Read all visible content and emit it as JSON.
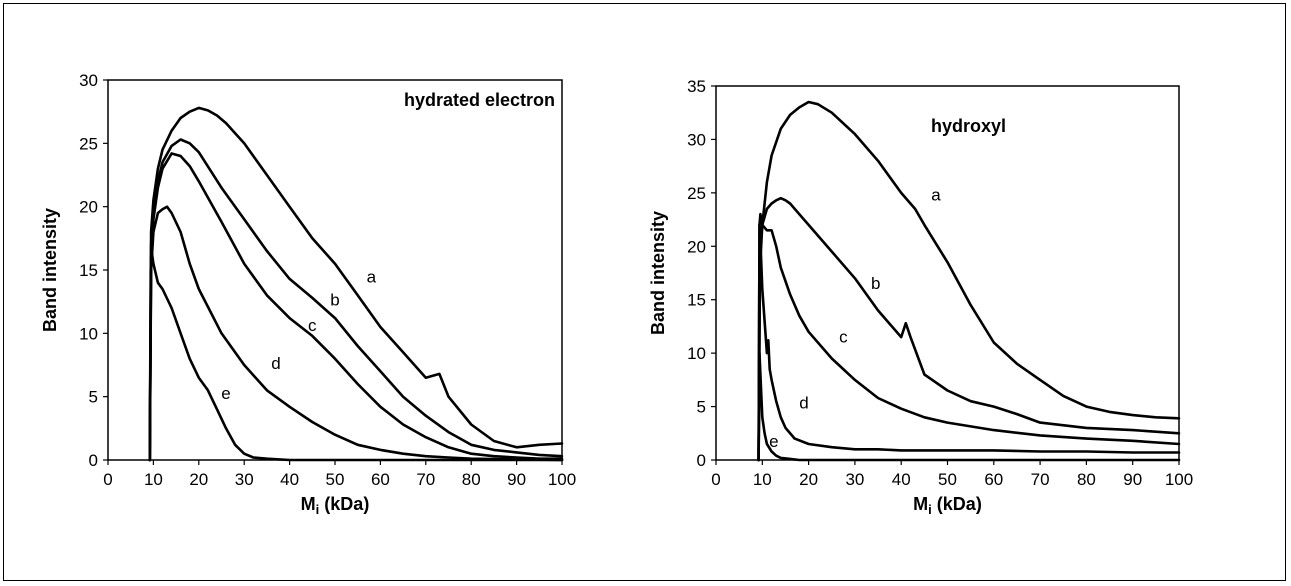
{
  "chart_data": [
    {
      "type": "line",
      "title": "",
      "annotation": "hydrated electron",
      "xlabel_main": "M",
      "xlabel_sub": "i",
      "xlabel_rest": " (kDa)",
      "ylabel": "Band intensity",
      "xlim": [
        0,
        100
      ],
      "ylim": [
        0,
        30
      ],
      "xticks": [
        0,
        10,
        20,
        30,
        40,
        50,
        60,
        70,
        80,
        90,
        100
      ],
      "yticks": [
        0,
        5,
        10,
        15,
        20,
        25,
        30
      ],
      "grid": false,
      "series": [
        {
          "name": "a",
          "label_at": [
            58,
            14
          ],
          "x": [
            9.2,
            9.5,
            10,
            11,
            12,
            14,
            16,
            18,
            20,
            22,
            24,
            26,
            28,
            30,
            35,
            40,
            45,
            50,
            55,
            60,
            65,
            70,
            73,
            75,
            80,
            85,
            90,
            95,
            100
          ],
          "y": [
            0,
            18,
            20.5,
            23,
            24.5,
            26,
            27,
            27.5,
            27.8,
            27.6,
            27.2,
            26.6,
            25.8,
            25,
            22.5,
            20,
            17.5,
            15.5,
            13,
            10.5,
            8.5,
            6.5,
            6.8,
            5,
            2.8,
            1.5,
            1,
            1.2,
            1.3
          ]
        },
        {
          "name": "b",
          "label_at": [
            50,
            12.2
          ],
          "x": [
            9.2,
            9.5,
            10,
            11,
            12,
            14,
            16,
            18,
            20,
            25,
            30,
            35,
            40,
            45,
            50,
            55,
            60,
            65,
            70,
            75,
            80,
            85,
            90,
            95,
            100
          ],
          "y": [
            0,
            17,
            19.5,
            22,
            23.5,
            24.8,
            25.3,
            25,
            24.3,
            21.5,
            19,
            16.5,
            14.3,
            12.8,
            11.2,
            9,
            7,
            5,
            3.5,
            2.2,
            1.2,
            0.8,
            0.6,
            0.4,
            0.3
          ]
        },
        {
          "name": "c",
          "label_at": [
            45,
            10.2
          ],
          "x": [
            9.2,
            9.5,
            10,
            11,
            12,
            14,
            16,
            18,
            20,
            25,
            30,
            35,
            40,
            45,
            50,
            55,
            60,
            65,
            70,
            75,
            80,
            85,
            90,
            95,
            100
          ],
          "y": [
            0,
            16,
            19,
            21.5,
            23,
            24.2,
            24,
            23.2,
            22,
            18.8,
            15.5,
            13,
            11.2,
            9.8,
            8,
            6,
            4.2,
            2.8,
            1.8,
            1,
            0.5,
            0.3,
            0.2,
            0.1,
            0.1
          ]
        },
        {
          "name": "d",
          "label_at": [
            37,
            7.2
          ],
          "x": [
            9.2,
            9.5,
            10,
            11,
            12,
            13,
            14,
            16,
            18,
            20,
            25,
            30,
            35,
            40,
            45,
            50,
            55,
            60,
            65,
            70,
            75,
            80,
            90,
            100
          ],
          "y": [
            0,
            15,
            18,
            19.5,
            19.8,
            20,
            19.5,
            18,
            15.5,
            13.5,
            10,
            7.5,
            5.5,
            4.2,
            3,
            2,
            1.2,
            0.8,
            0.5,
            0.3,
            0.2,
            0.1,
            0.05,
            0
          ]
        },
        {
          "name": "e",
          "label_at": [
            26,
            4.8
          ],
          "x": [
            9.2,
            9.4,
            9.6,
            10,
            11,
            12,
            14,
            16,
            18,
            20,
            22,
            24,
            26,
            28,
            30,
            32,
            35,
            40,
            50,
            60,
            70,
            80,
            90,
            100
          ],
          "y": [
            0,
            15,
            16.5,
            15.5,
            14,
            13.5,
            12,
            10,
            8,
            6.5,
            5.5,
            4,
            2.5,
            1.2,
            0.5,
            0.2,
            0.1,
            0,
            0,
            0,
            0,
            0,
            0,
            0
          ]
        }
      ]
    },
    {
      "type": "line",
      "title": "",
      "annotation": "hydroxyl",
      "xlabel_main": "M",
      "xlabel_sub": "i",
      "xlabel_rest": " (kDa)",
      "ylabel": "Band intensity",
      "xlim": [
        0,
        100
      ],
      "ylim": [
        0,
        35
      ],
      "xticks": [
        0,
        10,
        20,
        30,
        40,
        50,
        60,
        70,
        80,
        90,
        100
      ],
      "yticks": [
        0,
        5,
        10,
        15,
        20,
        25,
        30,
        35
      ],
      "grid": false,
      "series": [
        {
          "name": "a",
          "label_at": [
            47.5,
            24.3
          ],
          "x": [
            9.2,
            9.5,
            10,
            11,
            12,
            14,
            16,
            18,
            20,
            22,
            25,
            30,
            35,
            40,
            43,
            45,
            50,
            55,
            60,
            65,
            70,
            75,
            80,
            85,
            90,
            95,
            100
          ],
          "y": [
            0,
            18,
            22,
            26,
            28.5,
            31,
            32.3,
            33,
            33.5,
            33.3,
            32.5,
            30.5,
            28,
            25,
            23.5,
            22,
            18.5,
            14.5,
            11,
            9,
            7.5,
            6,
            5,
            4.5,
            4.2,
            4,
            3.9
          ]
        },
        {
          "name": "b",
          "label_at": [
            34.5,
            16
          ],
          "x": [
            9.2,
            9.5,
            10,
            11,
            12,
            13,
            14,
            15,
            16,
            18,
            20,
            25,
            30,
            35,
            40,
            41,
            42,
            45,
            50,
            55,
            60,
            65,
            70,
            80,
            90,
            100
          ],
          "y": [
            0,
            20,
            22,
            23.5,
            24,
            24.3,
            24.5,
            24.3,
            24,
            23,
            22,
            19.5,
            17,
            14,
            11.5,
            12.8,
            11.5,
            8,
            6.5,
            5.5,
            5,
            4.3,
            3.5,
            3,
            2.8,
            2.5
          ]
        },
        {
          "name": "c",
          "label_at": [
            27.5,
            11
          ],
          "x": [
            9.2,
            9.4,
            9.6,
            10,
            11,
            12,
            13,
            14,
            16,
            18,
            20,
            25,
            30,
            35,
            40,
            45,
            50,
            60,
            70,
            80,
            90,
            100
          ],
          "y": [
            0,
            22,
            23,
            22,
            21.5,
            21.5,
            20,
            18,
            15.5,
            13.5,
            12,
            9.5,
            7.5,
            5.8,
            4.8,
            4,
            3.5,
            2.8,
            2.3,
            2,
            1.8,
            1.5
          ]
        },
        {
          "name": "d",
          "label_at": [
            19,
            4.8
          ],
          "x": [
            9.2,
            9.4,
            9.6,
            10,
            10.5,
            11,
            11.3,
            11.6,
            12,
            13,
            14,
            15,
            17,
            20,
            25,
            30,
            35,
            40,
            50,
            60,
            70,
            80,
            90,
            100
          ],
          "y": [
            0,
            22,
            20.5,
            16,
            13,
            10,
            11.2,
            8.5,
            7.5,
            5.5,
            4,
            3,
            2,
            1.5,
            1.2,
            1,
            1,
            0.9,
            0.9,
            0.9,
            0.8,
            0.8,
            0.7,
            0.7
          ]
        },
        {
          "name": "e",
          "label_at": [
            12.5,
            1.2
          ],
          "x": [
            9.2,
            9.4,
            9.6,
            10,
            10.5,
            11,
            12,
            13,
            14,
            16,
            18,
            20,
            30,
            40,
            60,
            80,
            100
          ],
          "y": [
            0,
            10,
            8,
            4,
            2.5,
            1.5,
            0.8,
            0.4,
            0.2,
            0.1,
            0,
            0,
            0,
            0,
            0,
            0,
            0
          ]
        }
      ]
    }
  ]
}
